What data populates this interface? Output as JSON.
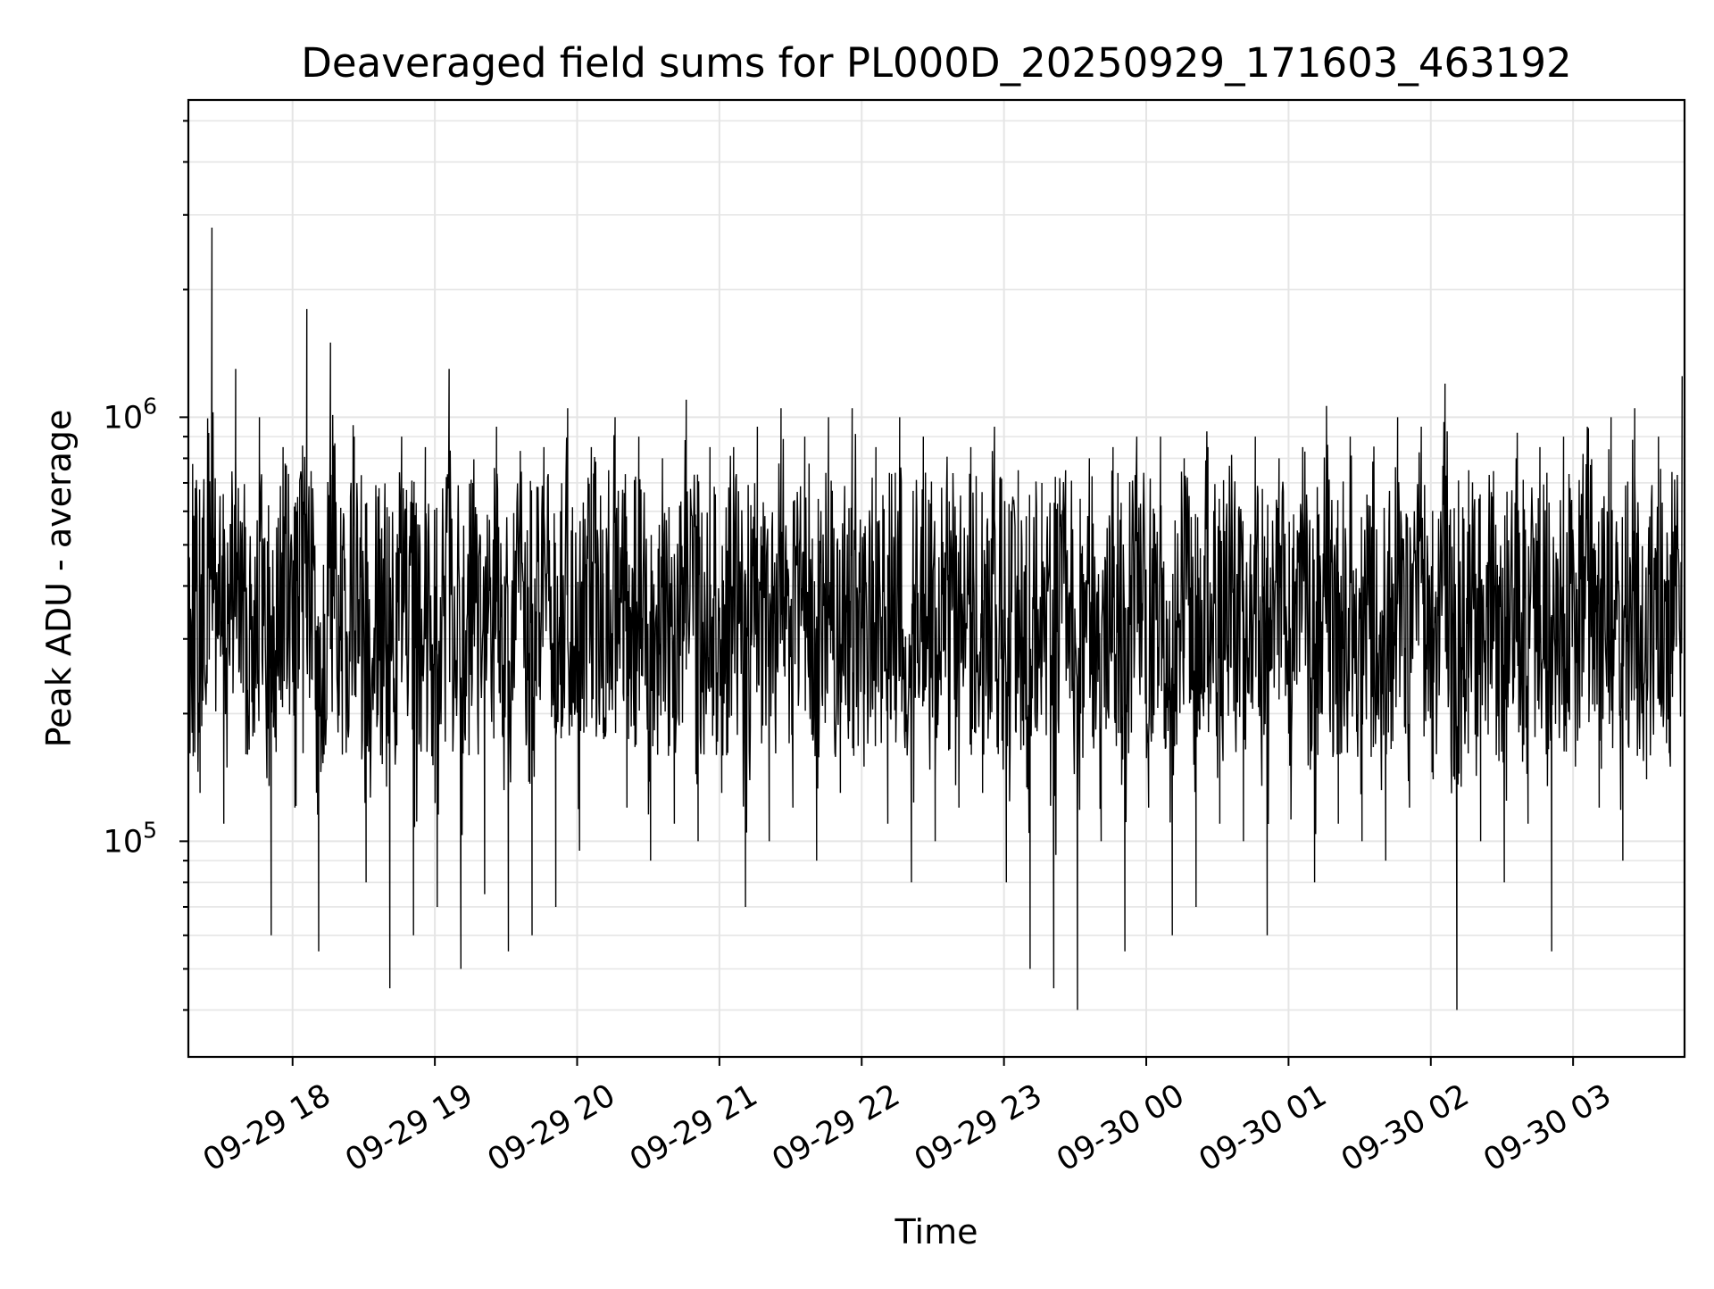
{
  "chart_data": {
    "type": "line",
    "title": "Deaveraged field sums for PL000D_20250929_171603_463192",
    "xlabel": "Time",
    "ylabel": "Peak ADU - average",
    "x_axis": {
      "kind": "datetime",
      "range": [
        "2025-09-29T17:16:03",
        "2025-09-30T03:47:00"
      ],
      "ticks": [
        {
          "value": "2025-09-29T18:00:00",
          "label": "09-29 18"
        },
        {
          "value": "2025-09-29T19:00:00",
          "label": "09-29 19"
        },
        {
          "value": "2025-09-29T20:00:00",
          "label": "09-29 20"
        },
        {
          "value": "2025-09-29T21:00:00",
          "label": "09-29 21"
        },
        {
          "value": "2025-09-29T22:00:00",
          "label": "09-29 22"
        },
        {
          "value": "2025-09-29T23:00:00",
          "label": "09-29 23"
        },
        {
          "value": "2025-09-30T00:00:00",
          "label": "09-30 00"
        },
        {
          "value": "2025-09-30T01:00:00",
          "label": "09-30 01"
        },
        {
          "value": "2025-09-30T02:00:00",
          "label": "09-30 02"
        },
        {
          "value": "2025-09-30T03:00:00",
          "label": "09-30 03"
        }
      ]
    },
    "y_axis": {
      "scale": "log",
      "range": [
        31000,
        5600000
      ],
      "major_ticks": [
        {
          "value": 100000,
          "base": "10",
          "exp": "5"
        },
        {
          "value": 1000000,
          "base": "10",
          "exp": "6"
        }
      ]
    },
    "grid": true,
    "legend": "none",
    "line_color": "#000000",
    "grid_color": "#e5e5e5",
    "series": [
      {
        "x": [
          "2025-09-29T17:16:03",
          "2025-09-29T17:21:00",
          "2025-09-29T17:26:00",
          "2025-09-29T17:31:00",
          "2025-09-29T17:36:00",
          "2025-09-29T17:41:00",
          "2025-09-29T17:46:00",
          "2025-09-29T17:51:00",
          "2025-09-29T17:56:00",
          "2025-09-29T18:01:00",
          "2025-09-29T18:06:00",
          "2025-09-29T18:11:00",
          "2025-09-29T18:16:00",
          "2025-09-29T18:21:00",
          "2025-09-29T18:26:00",
          "2025-09-29T18:31:00",
          "2025-09-29T18:36:00",
          "2025-09-29T18:41:00",
          "2025-09-29T18:46:00",
          "2025-09-29T18:51:00",
          "2025-09-29T18:56:00",
          "2025-09-29T19:01:00",
          "2025-09-29T19:06:00",
          "2025-09-29T19:11:00",
          "2025-09-29T19:16:00",
          "2025-09-29T19:21:00",
          "2025-09-29T19:26:00",
          "2025-09-29T19:31:00",
          "2025-09-29T19:36:00",
          "2025-09-29T19:41:00",
          "2025-09-29T19:46:00",
          "2025-09-29T19:51:00",
          "2025-09-29T19:56:00",
          "2025-09-29T20:01:00",
          "2025-09-29T20:06:00",
          "2025-09-29T20:11:00",
          "2025-09-29T20:16:00",
          "2025-09-29T20:21:00",
          "2025-09-29T20:26:00",
          "2025-09-29T20:31:00",
          "2025-09-29T20:36:00",
          "2025-09-29T20:41:00",
          "2025-09-29T20:46:00",
          "2025-09-29T20:51:00",
          "2025-09-29T20:56:00",
          "2025-09-29T21:01:00",
          "2025-09-29T21:06:00",
          "2025-09-29T21:11:00",
          "2025-09-29T21:16:00",
          "2025-09-29T21:21:00",
          "2025-09-29T21:26:00",
          "2025-09-29T21:31:00",
          "2025-09-29T21:36:00",
          "2025-09-29T21:41:00",
          "2025-09-29T21:46:00",
          "2025-09-29T21:51:00",
          "2025-09-29T21:56:00",
          "2025-09-29T22:01:00",
          "2025-09-29T22:06:00",
          "2025-09-29T22:11:00",
          "2025-09-29T22:16:00",
          "2025-09-29T22:21:00",
          "2025-09-29T22:26:00",
          "2025-09-29T22:31:00",
          "2025-09-29T22:36:00",
          "2025-09-29T22:41:00",
          "2025-09-29T22:46:00",
          "2025-09-29T22:51:00",
          "2025-09-29T22:56:00",
          "2025-09-29T23:01:00",
          "2025-09-29T23:06:00",
          "2025-09-29T23:11:00",
          "2025-09-29T23:16:00",
          "2025-09-29T23:21:00",
          "2025-09-29T23:26:00",
          "2025-09-29T23:31:00",
          "2025-09-29T23:36:00",
          "2025-09-29T23:41:00",
          "2025-09-29T23:46:00",
          "2025-09-29T23:51:00",
          "2025-09-29T23:56:00",
          "2025-09-30T00:01:00",
          "2025-09-30T00:06:00",
          "2025-09-30T00:11:00",
          "2025-09-30T00:16:00",
          "2025-09-30T00:21:00",
          "2025-09-30T00:26:00",
          "2025-09-30T00:31:00",
          "2025-09-30T00:36:00",
          "2025-09-30T00:41:00",
          "2025-09-30T00:46:00",
          "2025-09-30T00:51:00",
          "2025-09-30T00:56:00",
          "2025-09-30T01:01:00",
          "2025-09-30T01:06:00",
          "2025-09-30T01:11:00",
          "2025-09-30T01:16:00",
          "2025-09-30T01:21:00",
          "2025-09-30T01:26:00",
          "2025-09-30T01:31:00",
          "2025-09-30T01:36:00",
          "2025-09-30T01:41:00",
          "2025-09-30T01:46:00",
          "2025-09-30T01:51:00",
          "2025-09-30T01:56:00",
          "2025-09-30T02:01:00",
          "2025-09-30T02:06:00",
          "2025-09-30T02:11:00",
          "2025-09-30T02:16:00",
          "2025-09-30T02:21:00",
          "2025-09-30T02:26:00",
          "2025-09-30T02:31:00",
          "2025-09-30T02:36:00",
          "2025-09-30T02:41:00",
          "2025-09-30T02:46:00",
          "2025-09-30T02:51:00",
          "2025-09-30T02:56:00",
          "2025-09-30T03:01:00",
          "2025-09-30T03:06:00",
          "2025-09-30T03:11:00",
          "2025-09-30T03:16:00",
          "2025-09-30T03:21:00",
          "2025-09-30T03:26:00",
          "2025-09-30T03:31:00",
          "2025-09-30T03:36:00",
          "2025-09-30T03:41:00",
          "2025-09-30T03:46:00"
        ],
        "y": [
          1200000,
          130000,
          2800000,
          110000,
          1300000,
          160000,
          1000000,
          60000,
          850000,
          120000,
          1800000,
          55000,
          1500000,
          160000,
          900000,
          80000,
          650000,
          45000,
          900000,
          60000,
          850000,
          70000,
          1300000,
          50000,
          700000,
          75000,
          950000,
          55000,
          750000,
          60000,
          850000,
          70000,
          1050000,
          95000,
          850000,
          180000,
          1000000,
          120000,
          900000,
          90000,
          800000,
          110000,
          1100000,
          100000,
          850000,
          130000,
          850000,
          70000,
          950000,
          100000,
          1050000,
          120000,
          900000,
          90000,
          1000000,
          130000,
          1050000,
          150000,
          850000,
          110000,
          1000000,
          80000,
          900000,
          100000,
          800000,
          120000,
          850000,
          130000,
          950000,
          80000,
          750000,
          50000,
          700000,
          45000,
          750000,
          40000,
          800000,
          100000,
          850000,
          55000,
          900000,
          120000,
          900000,
          60000,
          800000,
          70000,
          850000,
          110000,
          750000,
          100000,
          900000,
          60000,
          800000,
          130000,
          850000,
          80000,
          950000,
          110000,
          900000,
          100000,
          850000,
          90000,
          1000000,
          120000,
          950000,
          140000,
          1200000,
          40000,
          750000,
          100000,
          650000,
          80000,
          800000,
          110000,
          850000,
          55000,
          900000,
          150000,
          950000,
          120000,
          1000000,
          90000,
          1050000,
          140000,
          900000,
          150000,
          1250000
        ]
      }
    ]
  }
}
